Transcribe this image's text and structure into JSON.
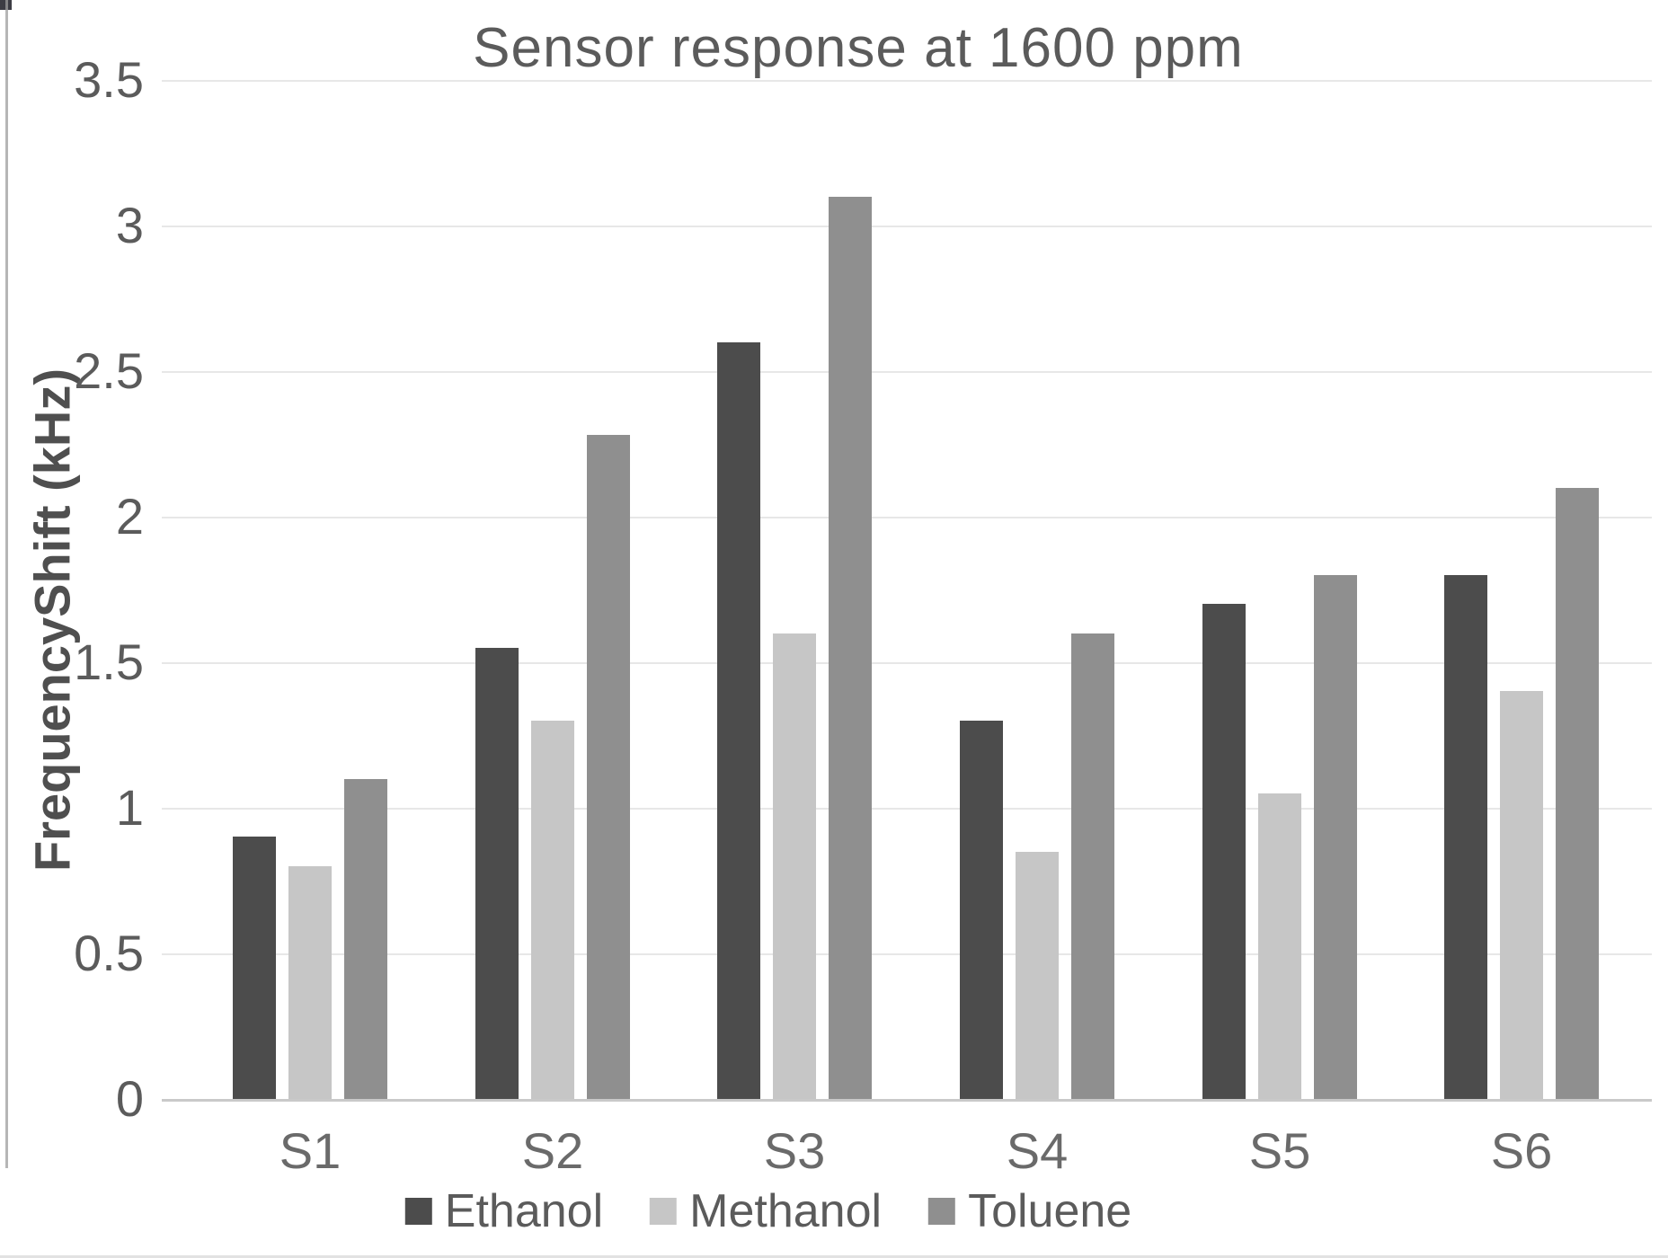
{
  "chart_data": {
    "type": "bar",
    "title": "Sensor response at 1600 ppm",
    "ylabel": "FrequencyShift (kHz)",
    "xlabel": "",
    "categories": [
      "S1",
      "S2",
      "S3",
      "S4",
      "S5",
      "S6"
    ],
    "series": [
      {
        "name": "Ethanol",
        "color": "#4c4c4c",
        "values": [
          0.9,
          1.55,
          2.6,
          1.3,
          1.7,
          1.8
        ]
      },
      {
        "name": "Methanol",
        "color": "#c6c6c6",
        "values": [
          0.8,
          1.3,
          1.6,
          0.85,
          1.05,
          1.4
        ]
      },
      {
        "name": "Toluene",
        "color": "#8f8f8f",
        "values": [
          1.1,
          2.28,
          3.1,
          1.6,
          1.8,
          2.1
        ]
      }
    ],
    "ylim": [
      0,
      3.5
    ],
    "ytick_step": 0.5,
    "ytick_labels": [
      "3.5",
      "3",
      "2.5",
      "2",
      "1.5",
      "1",
      "0.5",
      "0"
    ],
    "grid": "horizontal",
    "legend_position": "bottom",
    "colors": {
      "text": "#5b5b5b",
      "gridline": "#e7e7e7",
      "axis_line": "#c9c9c9",
      "background": "#ffffff"
    }
  }
}
